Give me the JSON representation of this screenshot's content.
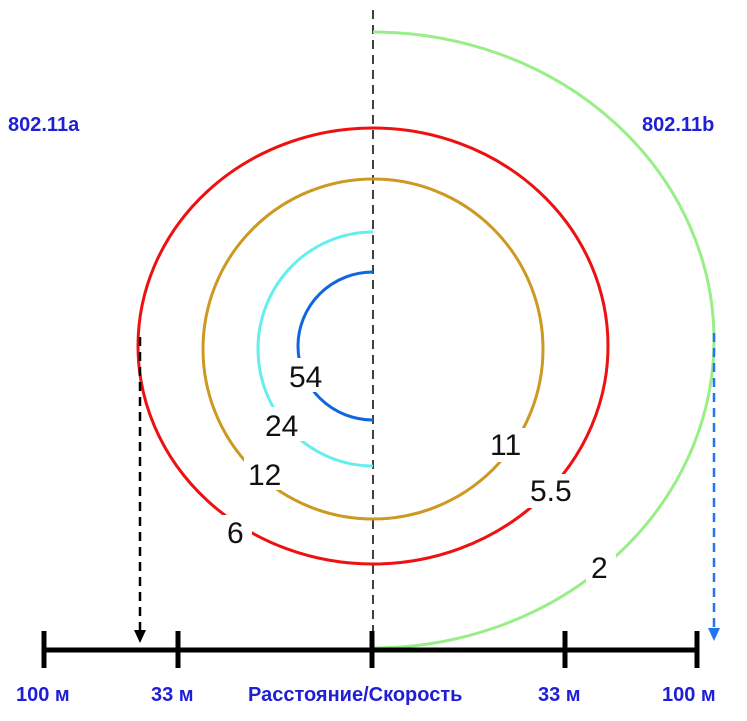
{
  "standards": {
    "left": "802.11a",
    "right": "802.11b"
  },
  "rates_a": [
    "54",
    "24",
    "12",
    "6"
  ],
  "rates_b": [
    "11",
    "5.5",
    "2"
  ],
  "axis": {
    "left_far": "100 м",
    "left_near": "33 м",
    "center": "Расстояние/Скорость",
    "right_near": "33 м",
    "right_far": "100 м"
  },
  "colors": {
    "red": "#ee1111",
    "gold": "#cc9922",
    "cyan": "#66eeee",
    "blue": "#1166dd",
    "green": "#99ee88",
    "label_blue": "#1f1fd6",
    "arrow_blue": "#2277ee"
  }
}
